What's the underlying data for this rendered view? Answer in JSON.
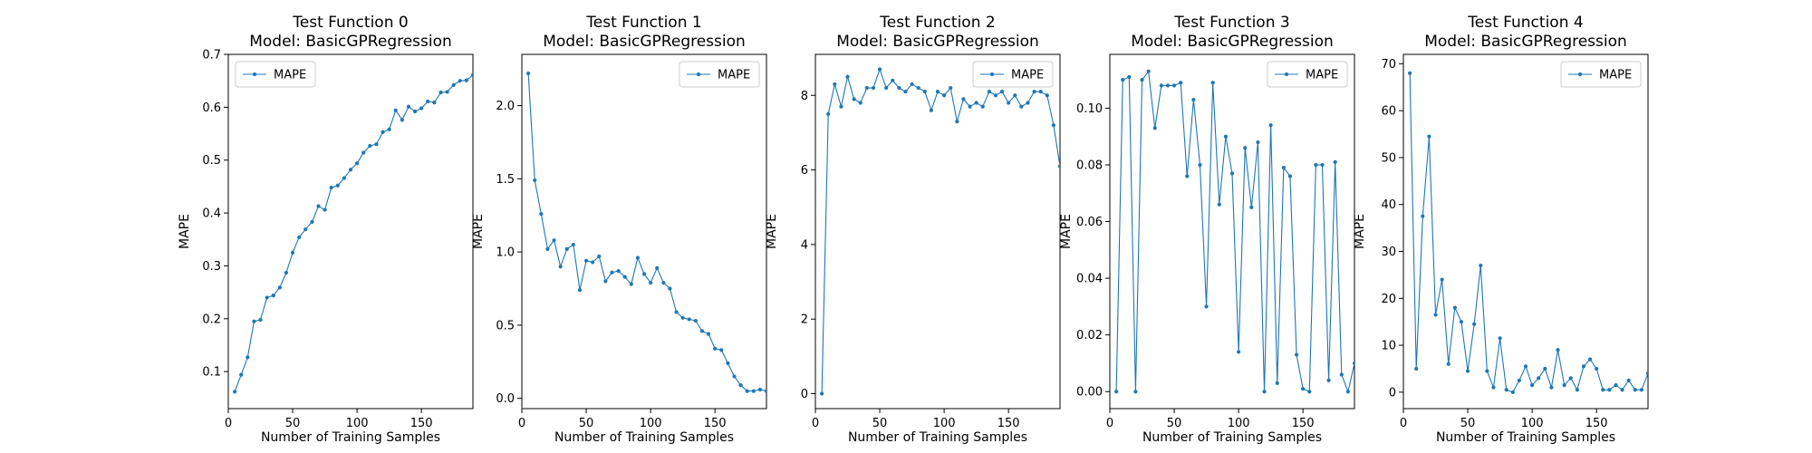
{
  "colors": {
    "series": "#1f77b4",
    "axes": "#000000",
    "legend_border": "#cccccc",
    "background": "#ffffff"
  },
  "chart_data": [
    {
      "type": "line",
      "title": "Test Function 0",
      "subtitle": "Model: BasicGPRegression",
      "xlabel": "Number of Training Samples",
      "ylabel": "MAPE",
      "xlim": [
        0,
        190
      ],
      "ylim": [
        0.03,
        0.7
      ],
      "xticks": [
        0,
        50,
        100,
        150
      ],
      "yticks": [
        0.1,
        0.2,
        0.3,
        0.4,
        0.5,
        0.6,
        0.7
      ],
      "legend_loc": "upper-left",
      "grid": false,
      "series": [
        {
          "name": "MAPE",
          "x": [
            5,
            10,
            15,
            20,
            25,
            30,
            35,
            40,
            45,
            50,
            55,
            60,
            65,
            70,
            75,
            80,
            85,
            90,
            95,
            100,
            105,
            110,
            115,
            120,
            125,
            130,
            135,
            140,
            145,
            150,
            155,
            160,
            165,
            170,
            175,
            180,
            185,
            190
          ],
          "y": [
            0.062,
            0.094,
            0.127,
            0.195,
            0.198,
            0.24,
            0.244,
            0.259,
            0.287,
            0.325,
            0.354,
            0.369,
            0.383,
            0.413,
            0.406,
            0.448,
            0.452,
            0.466,
            0.482,
            0.494,
            0.514,
            0.527,
            0.53,
            0.553,
            0.558,
            0.594,
            0.576,
            0.601,
            0.592,
            0.598,
            0.611,
            0.609,
            0.628,
            0.629,
            0.642,
            0.65,
            0.651,
            0.661
          ]
        }
      ]
    },
    {
      "type": "line",
      "title": "Test Function 1",
      "subtitle": "Model: BasicGPRegression",
      "xlabel": "Number of Training Samples",
      "ylabel": "MAPE",
      "xlim": [
        0,
        190
      ],
      "ylim": [
        -0.07,
        2.35
      ],
      "xticks": [
        0,
        50,
        100,
        150
      ],
      "yticks": [
        0.0,
        0.5,
        1.0,
        1.5,
        2.0
      ],
      "legend_loc": "upper-right",
      "grid": false,
      "series": [
        {
          "name": "MAPE",
          "x": [
            5,
            10,
            15,
            20,
            25,
            30,
            35,
            40,
            45,
            50,
            55,
            60,
            65,
            70,
            75,
            80,
            85,
            90,
            95,
            100,
            105,
            110,
            115,
            120,
            125,
            130,
            135,
            140,
            145,
            150,
            155,
            160,
            165,
            170,
            175,
            180,
            185,
            190
          ],
          "y": [
            2.22,
            1.49,
            1.26,
            1.02,
            1.08,
            0.9,
            1.02,
            1.05,
            0.74,
            0.94,
            0.93,
            0.97,
            0.8,
            0.86,
            0.87,
            0.83,
            0.78,
            0.96,
            0.85,
            0.79,
            0.89,
            0.79,
            0.75,
            0.59,
            0.55,
            0.54,
            0.53,
            0.46,
            0.44,
            0.34,
            0.33,
            0.24,
            0.15,
            0.09,
            0.05,
            0.05,
            0.06,
            0.05
          ]
        }
      ]
    },
    {
      "type": "line",
      "title": "Test Function 2",
      "subtitle": "Model: BasicGPRegression",
      "xlabel": "Number of Training Samples",
      "ylabel": "MAPE",
      "xlim": [
        0,
        190
      ],
      "ylim": [
        -0.4,
        9.1
      ],
      "xticks": [
        0,
        50,
        100,
        150
      ],
      "yticks": [
        0,
        2,
        4,
        6,
        8
      ],
      "legend_loc": "upper-right",
      "grid": false,
      "series": [
        {
          "name": "MAPE",
          "x": [
            5,
            10,
            15,
            20,
            25,
            30,
            35,
            40,
            45,
            50,
            55,
            60,
            65,
            70,
            75,
            80,
            85,
            90,
            95,
            100,
            105,
            110,
            115,
            120,
            125,
            130,
            135,
            140,
            145,
            150,
            155,
            160,
            165,
            170,
            175,
            180,
            185,
            190
          ],
          "y": [
            0.0,
            7.5,
            8.3,
            7.7,
            8.5,
            7.9,
            7.8,
            8.2,
            8.2,
            8.7,
            8.2,
            8.4,
            8.2,
            8.1,
            8.3,
            8.2,
            8.1,
            7.6,
            8.1,
            8.0,
            8.2,
            7.3,
            7.9,
            7.7,
            7.8,
            7.7,
            8.1,
            8.0,
            8.1,
            7.8,
            8.0,
            7.7,
            7.8,
            8.1,
            8.1,
            8.0,
            7.2,
            6.1
          ]
        }
      ]
    },
    {
      "type": "line",
      "title": "Test Function 3",
      "subtitle": "Model: BasicGPRegression",
      "xlabel": "Number of Training Samples",
      "ylabel": "MAPE",
      "xlim": [
        0,
        190
      ],
      "ylim": [
        -0.006,
        0.119
      ],
      "xticks": [
        0,
        50,
        100,
        150
      ],
      "yticks": [
        0.0,
        0.02,
        0.04,
        0.06,
        0.08,
        0.1
      ],
      "legend_loc": "upper-right",
      "grid": false,
      "series": [
        {
          "name": "MAPE",
          "x": [
            5,
            10,
            15,
            20,
            25,
            30,
            35,
            40,
            45,
            50,
            55,
            60,
            65,
            70,
            75,
            80,
            85,
            90,
            95,
            100,
            105,
            110,
            115,
            120,
            125,
            130,
            135,
            140,
            145,
            150,
            155,
            160,
            165,
            170,
            175,
            180,
            185,
            190
          ],
          "y": [
            0.0,
            0.11,
            0.111,
            0.0,
            0.11,
            0.113,
            0.093,
            0.108,
            0.108,
            0.108,
            0.109,
            0.076,
            0.103,
            0.08,
            0.03,
            0.109,
            0.066,
            0.09,
            0.077,
            0.014,
            0.086,
            0.065,
            0.088,
            0.0,
            0.094,
            0.003,
            0.079,
            0.076,
            0.013,
            0.001,
            0.0,
            0.08,
            0.08,
            0.004,
            0.081,
            0.006,
            0.0,
            0.01
          ]
        }
      ]
    },
    {
      "type": "line",
      "title": "Test Function 4",
      "subtitle": "Model: BasicGPRegression",
      "xlabel": "Number of Training Samples",
      "ylabel": "MAPE",
      "xlim": [
        0,
        190
      ],
      "ylim": [
        -3.5,
        72
      ],
      "xticks": [
        0,
        50,
        100,
        150
      ],
      "yticks": [
        0,
        10,
        20,
        30,
        40,
        50,
        60,
        70
      ],
      "legend_loc": "upper-right",
      "grid": false,
      "series": [
        {
          "name": "MAPE",
          "x": [
            5,
            10,
            15,
            20,
            25,
            30,
            35,
            40,
            45,
            50,
            55,
            60,
            65,
            70,
            75,
            80,
            85,
            90,
            95,
            100,
            105,
            110,
            115,
            120,
            125,
            130,
            135,
            140,
            145,
            150,
            155,
            160,
            165,
            170,
            175,
            180,
            185,
            190
          ],
          "y": [
            68,
            5,
            37.5,
            54.5,
            16.5,
            24,
            6,
            18,
            15,
            4.5,
            14.5,
            27,
            4.5,
            1,
            11.5,
            0.5,
            0,
            2.5,
            5.5,
            1.5,
            3,
            5,
            1,
            9,
            1.5,
            3,
            0.5,
            5.5,
            7,
            5,
            0.5,
            0.5,
            1.5,
            0.5,
            2.5,
            0.5,
            0.5,
            4
          ]
        }
      ]
    }
  ]
}
